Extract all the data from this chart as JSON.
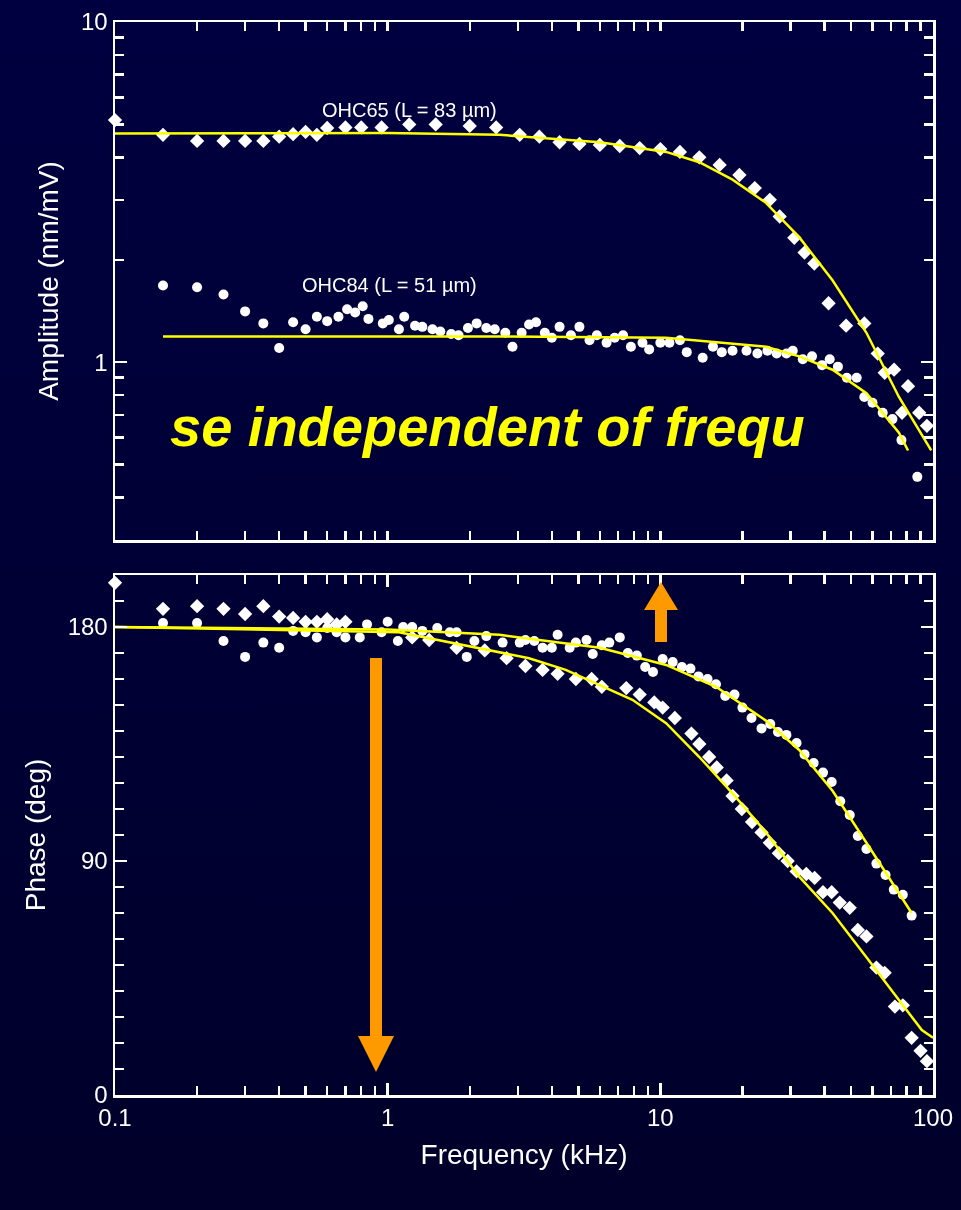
{
  "chart_data": [
    {
      "type": "scatter",
      "ylabel": "Amplitude (nm/mV)",
      "log": "xy",
      "grid": false,
      "legend": false,
      "tick_labels": "y",
      "xlim": [
        0.1,
        100
      ],
      "ylim": [
        0.3,
        10
      ],
      "xticks": [
        {
          "value": 0.1,
          "label": null
        },
        {
          "value": 0.2,
          "label": null
        },
        {
          "value": 0.3,
          "label": null
        },
        {
          "value": 0.4,
          "label": null
        },
        {
          "value": 0.5,
          "label": null
        },
        {
          "value": 0.6,
          "label": null
        },
        {
          "value": 0.7,
          "label": null
        },
        {
          "value": 0.8,
          "label": null
        },
        {
          "value": 0.9,
          "label": null
        },
        {
          "value": 1,
          "label": null
        },
        {
          "value": 2,
          "label": null
        },
        {
          "value": 3,
          "label": null
        },
        {
          "value": 4,
          "label": null
        },
        {
          "value": 5,
          "label": null
        },
        {
          "value": 6,
          "label": null
        },
        {
          "value": 7,
          "label": null
        },
        {
          "value": 8,
          "label": null
        },
        {
          "value": 9,
          "label": null
        },
        {
          "value": 10,
          "label": null
        },
        {
          "value": 20,
          "label": null
        },
        {
          "value": 30,
          "label": null
        },
        {
          "value": 40,
          "label": null
        },
        {
          "value": 50,
          "label": null
        },
        {
          "value": 60,
          "label": null
        },
        {
          "value": 70,
          "label": null
        },
        {
          "value": 80,
          "label": null
        },
        {
          "value": 90,
          "label": null
        },
        {
          "value": 100,
          "label": null
        }
      ],
      "yticks": [
        {
          "value": 0.4,
          "label": null
        },
        {
          "value": 0.5,
          "label": null
        },
        {
          "value": 0.6,
          "label": null
        },
        {
          "value": 0.7,
          "label": null
        },
        {
          "value": 0.8,
          "label": null
        },
        {
          "value": 0.9,
          "label": null
        },
        1,
        {
          "value": 2,
          "label": null
        },
        {
          "value": 3,
          "label": null
        },
        {
          "value": 4,
          "label": null
        },
        {
          "value": 5,
          "label": null
        },
        {
          "value": 6,
          "label": null
        },
        {
          "value": 7,
          "label": null
        },
        {
          "value": 8,
          "label": null
        },
        {
          "value": 9,
          "label": null
        },
        10
      ],
      "annotations": [
        "se independent of frequ"
      ],
      "series": [
        {
          "name": "OHC65 (L = 83 µm)",
          "marker": "diamond",
          "color": "#ffffff",
          "x": [
            0.1,
            0.15,
            0.2,
            0.25,
            0.3,
            0.35,
            0.4,
            0.45,
            0.5,
            0.55,
            0.6,
            0.7,
            0.8,
            0.95,
            1.2,
            1.5,
            2,
            2.5,
            3.05,
            3.6,
            4.27,
            5.05,
            6,
            7.1,
            8.4,
            10,
            11.8,
            13.9,
            16.5,
            19.5,
            22.2,
            25.2,
            27.4,
            31,
            33.8,
            36.7,
            41.4,
            48,
            56,
            62.7,
            66.5,
            72,
            77,
            81,
            89,
            95
          ],
          "values": [
            5.15,
            4.66,
            4.47,
            4.47,
            4.47,
            4.47,
            4.6,
            4.68,
            4.75,
            4.66,
            4.88,
            4.9,
            4.9,
            4.9,
            5.0,
            5.0,
            4.95,
            4.9,
            4.66,
            4.6,
            4.43,
            4.38,
            4.35,
            4.32,
            4.26,
            4.23,
            4.15,
            4.0,
            3.8,
            3.55,
            3.25,
            3.0,
            2.68,
            2.32,
            2.1,
            1.95,
            1.49,
            1.28,
            1.3,
            1.06,
            0.93,
            0.95,
            0.71,
            0.85,
            0.71,
            0.65
          ]
        },
        {
          "name": "OHC84 (L = 51 µm)",
          "marker": "circle",
          "color": "#ffffff",
          "x": [
            0.15,
            0.2,
            0.25,
            0.3,
            0.35,
            0.4,
            0.45,
            0.5,
            0.55,
            0.6,
            0.66,
            0.71,
            0.76,
            0.81,
            0.85,
            0.96,
            1.01,
            1.1,
            1.15,
            1.26,
            1.34,
            1.46,
            1.56,
            1.71,
            1.82,
            1.97,
            2.12,
            2.3,
            2.47,
            2.7,
            2.87,
            3.1,
            3.3,
            3.5,
            3.77,
            4.0,
            4.27,
            4.7,
            5.05,
            5.5,
            5.85,
            6.35,
            6.8,
            7.3,
            7.8,
            8.6,
            9.1,
            10,
            10.8,
            11.8,
            12.5,
            14.3,
            15.6,
            16.8,
            18.4,
            20.7,
            22.7,
            24.7,
            26.7,
            29,
            30.6,
            33.3,
            36,
            39.2,
            41.8,
            44.8,
            48.3,
            52.5,
            56,
            60,
            65.4,
            71,
            76.6,
            87.6
          ],
          "values": [
            1.68,
            1.66,
            1.58,
            1.41,
            1.3,
            1.1,
            1.31,
            1.25,
            1.36,
            1.32,
            1.36,
            1.43,
            1.4,
            1.46,
            1.34,
            1.3,
            1.33,
            1.25,
            1.36,
            1.28,
            1.27,
            1.25,
            1.23,
            1.21,
            1.2,
            1.26,
            1.3,
            1.26,
            1.25,
            1.22,
            1.11,
            1.22,
            1.29,
            1.31,
            1.22,
            1.18,
            1.27,
            1.2,
            1.27,
            1.16,
            1.2,
            1.14,
            1.18,
            1.2,
            1.11,
            1.14,
            1.09,
            1.14,
            1.14,
            1.16,
            1.07,
            1.03,
            1.11,
            1.07,
            1.08,
            1.08,
            1.06,
            1.08,
            1.06,
            1.06,
            1.08,
            1.02,
            1.04,
            0.98,
            1.02,
            0.97,
            0.9,
            0.9,
            0.79,
            0.76,
            0.71,
            0.68,
            0.59,
            0.46
          ]
        },
        {
          "type": "line",
          "marker": "none",
          "color": "#ffff00",
          "x": [
            0.1,
            1,
            2.57,
            6,
            10.5,
            13.9,
            18.4,
            24.4,
            32.3,
            42.8,
            57,
            75,
            98.5
          ],
          "values": [
            4.7,
            4.72,
            4.66,
            4.43,
            4.15,
            3.87,
            3.44,
            2.94,
            2.33,
            1.74,
            1.22,
            0.79,
            0.55
          ]
        },
        {
          "type": "line",
          "marker": "none",
          "color": "#ffff00",
          "x": [
            0.15,
            1,
            2.57,
            10.5,
            24.4,
            32.3,
            42.8,
            57,
            75,
            81
          ],
          "values": [
            1.19,
            1.19,
            1.19,
            1.18,
            1.11,
            1.04,
            0.95,
            0.81,
            0.62,
            0.55
          ]
        }
      ]
    },
    {
      "type": "scatter",
      "xlabel": "Frequency (kHz)",
      "ylabel": "Phase (deg)",
      "log": "x",
      "grid": false,
      "legend": false,
      "xlim": [
        0.1,
        100
      ],
      "ylim": [
        0,
        200
      ],
      "xticks": [
        0.1,
        {
          "value": 0.2,
          "label": null
        },
        {
          "value": 0.3,
          "label": null
        },
        {
          "value": 0.4,
          "label": null
        },
        {
          "value": 0.5,
          "label": null
        },
        {
          "value": 0.6,
          "label": null
        },
        {
          "value": 0.7,
          "label": null
        },
        {
          "value": 0.8,
          "label": null
        },
        {
          "value": 0.9,
          "label": null
        },
        1,
        {
          "value": 2,
          "label": null
        },
        {
          "value": 3,
          "label": null
        },
        {
          "value": 4,
          "label": null
        },
        {
          "value": 5,
          "label": null
        },
        {
          "value": 6,
          "label": null
        },
        {
          "value": 7,
          "label": null
        },
        {
          "value": 8,
          "label": null
        },
        {
          "value": 9,
          "label": null
        },
        10,
        {
          "value": 20,
          "label": null
        },
        {
          "value": 30,
          "label": null
        },
        {
          "value": 40,
          "label": null
        },
        {
          "value": 50,
          "label": null
        },
        {
          "value": 60,
          "label": null
        },
        {
          "value": 70,
          "label": null
        },
        {
          "value": 80,
          "label": null
        },
        {
          "value": 90,
          "label": null
        },
        100
      ],
      "yticks": [
        0,
        {
          "value": 10,
          "label": null
        },
        {
          "value": 20,
          "label": null
        },
        {
          "value": 30,
          "label": null
        },
        {
          "value": 40,
          "label": null
        },
        {
          "value": 50,
          "label": null
        },
        {
          "value": 60,
          "label": null
        },
        {
          "value": 70,
          "label": null
        },
        {
          "value": 80,
          "label": null
        },
        90,
        {
          "value": 100,
          "label": null
        },
        {
          "value": 110,
          "label": null
        },
        {
          "value": 120,
          "label": null
        },
        {
          "value": 130,
          "label": null
        },
        {
          "value": 140,
          "label": null
        },
        {
          "value": 150,
          "label": null
        },
        {
          "value": 160,
          "label": null
        },
        {
          "value": 170,
          "label": null
        },
        180,
        {
          "value": 190,
          "label": null
        },
        {
          "value": 200,
          "label": null
        }
      ],
      "series": [
        {
          "marker": "diamond",
          "color": "#ffffff",
          "x": [
            0.1,
            0.15,
            0.2,
            0.25,
            0.3,
            0.35,
            0.4,
            0.45,
            0.5,
            0.55,
            0.6,
            0.65,
            0.7,
            1.0,
            1.23,
            1.42,
            1.79,
            2.27,
            2.73,
            3.2,
            3.7,
            4.2,
            4.9,
            5.6,
            6.1,
            7.5,
            8.4,
            9.5,
            10.2,
            11.3,
            13,
            13.9,
            15.1,
            16.1,
            17.5,
            18.4,
            19.9,
            21.7,
            23.5,
            25.2,
            27.2,
            29.3,
            31.6,
            34.3,
            36.8,
            39.5,
            42.5,
            45.5,
            49.5,
            53,
            57,
            62,
            66.5,
            72.5,
            77.5,
            83.5,
            90,
            95
          ],
          "values": [
            197,
            187,
            188,
            187,
            185,
            188,
            184,
            183.5,
            182,
            182,
            183,
            181,
            182,
            null,
            176,
            175,
            172,
            171,
            168,
            165,
            163.5,
            162,
            160,
            160,
            157,
            156.5,
            154,
            151,
            149,
            145,
            139,
            135,
            130,
            126,
            121,
            115,
            110,
            105,
            101,
            97,
            93,
            90,
            86,
            85,
            83.5,
            78,
            78,
            74,
            72,
            63.5,
            61,
            49,
            47,
            34,
            34.5,
            22,
            17,
            13
          ]
        },
        {
          "marker": "circle",
          "color": "#ffffff",
          "x": [
            0.15,
            0.2,
            0.25,
            0.3,
            0.35,
            0.4,
            0.45,
            0.5,
            0.55,
            0.6,
            0.65,
            0.7,
            0.79,
            0.84,
            0.95,
            1.0,
            1.09,
            1.14,
            1.23,
            1.34,
            1.52,
            1.69,
            1.79,
            1.95,
            2.08,
            2.3,
            2.64,
            3.05,
            3.2,
            3.45,
            3.7,
            4.0,
            4.2,
            4.65,
            4.9,
            5.36,
            5.65,
            6.1,
            6.5,
            7.1,
            7.6,
            8.2,
            8.8,
            9.4,
            10.2,
            11.1,
            12,
            12.9,
            13.8,
            14.9,
            16,
            17.3,
            18.7,
            20,
            21.6,
            23.5,
            25.3,
            27,
            29,
            31.6,
            33.8,
            36.5,
            39.5,
            42.5,
            45.7,
            49.5,
            53,
            57,
            62,
            67,
            71.8,
            77.5,
            83.5
          ],
          "values": [
            181.5,
            181.5,
            174.6,
            168.5,
            174,
            172,
            178.5,
            178,
            176,
            179.6,
            178,
            176,
            176,
            181,
            178,
            182,
            174.6,
            180,
            180,
            178.5,
            179.6,
            178,
            178,
            168.5,
            174.6,
            176.5,
            174,
            174,
            175,
            174.6,
            172,
            172,
            177,
            172,
            174,
            175,
            169.6,
            173,
            174,
            176,
            170,
            169,
            164.6,
            162.7,
            167.7,
            166.5,
            164.6,
            164,
            161,
            160,
            158,
            153.5,
            154,
            149,
            145,
            141,
            142.7,
            139.6,
            138.5,
            135.4,
            131,
            127.7,
            124,
            120.4,
            113,
            107.7,
            99.6,
            94.6,
            89,
            84.6,
            79,
            77,
            69
          ]
        },
        {
          "type": "line",
          "marker": "none",
          "color": "#ffff00",
          "x": [
            0.1,
            1,
            2.57,
            6,
            10.5,
            16,
            24.4,
            32.3,
            42.8,
            57,
            83.5
          ],
          "values": [
            180,
            179,
            177,
            172,
            165.4,
            157,
            144,
            132.7,
            117,
            97,
            70
          ]
        },
        {
          "type": "line",
          "marker": "none",
          "color": "#ffff00",
          "x": [
            0.1,
            1.1,
            3.3,
            4.5,
            7.9,
            10.5,
            13.9,
            18.4,
            24.4,
            32.3,
            42.8,
            57,
            75,
            91,
            100
          ],
          "values": [
            180,
            178,
            168,
            163.5,
            152,
            143,
            130,
            116,
            101,
            84,
            70,
            53,
            36.5,
            25,
            22
          ]
        }
      ]
    }
  ]
}
